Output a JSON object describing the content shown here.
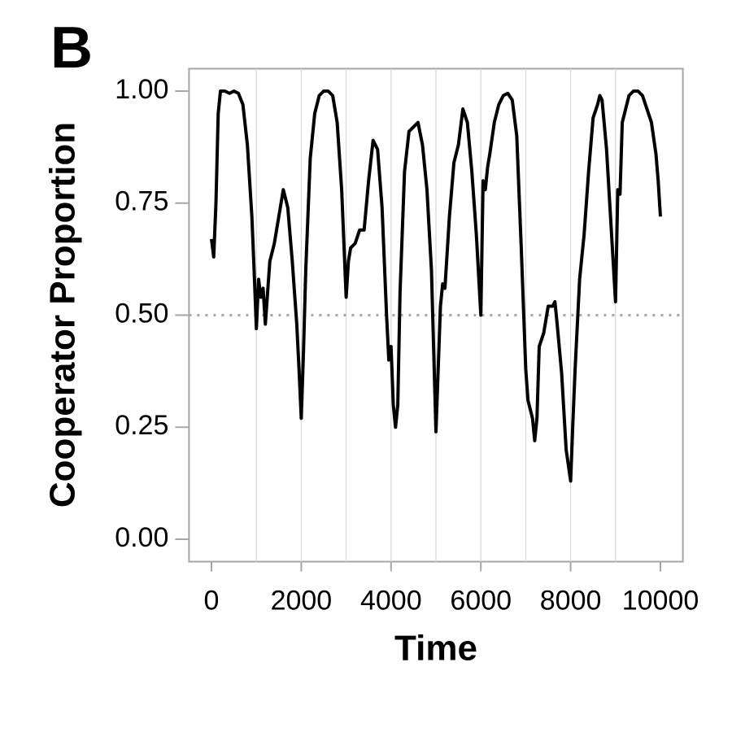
{
  "chart_data": {
    "type": "line",
    "panel_label": "B",
    "x_label": "Time",
    "y_label": "Cooperator Proportion",
    "xlim": [
      -500,
      10500
    ],
    "ylim": [
      -0.05,
      1.05
    ],
    "xticks": [
      0,
      2000,
      4000,
      6000,
      8000,
      10000
    ],
    "yticks": [
      {
        "value": 0,
        "label": "0.00"
      },
      0.25,
      {
        "value": 0.5,
        "label": "0.50"
      },
      0.75,
      {
        "value": 1,
        "label": "1.00"
      }
    ],
    "vlines": [
      1000,
      2000,
      3000,
      4000,
      5000,
      6000,
      7000,
      8000,
      9000
    ],
    "hline": 0.5,
    "x": [
      0,
      50,
      100,
      150,
      200,
      300,
      400,
      500,
      600,
      700,
      800,
      900,
      950,
      1000,
      1050,
      1100,
      1150,
      1200,
      1250,
      1300,
      1400,
      1500,
      1600,
      1700,
      1800,
      1900,
      1950,
      2000,
      2050,
      2100,
      2200,
      2300,
      2400,
      2500,
      2600,
      2700,
      2800,
      2900,
      3000,
      3050,
      3100,
      3200,
      3300,
      3400,
      3500,
      3600,
      3700,
      3800,
      3900,
      3950,
      4000,
      4050,
      4100,
      4150,
      4200,
      4300,
      4400,
      4500,
      4600,
      4700,
      4800,
      4900,
      5000,
      5050,
      5100,
      5150,
      5200,
      5300,
      5400,
      5500,
      5600,
      5700,
      5800,
      5900,
      6000,
      6050,
      6100,
      6150,
      6200,
      6300,
      6400,
      6500,
      6600,
      6700,
      6800,
      6900,
      7000,
      7050,
      7100,
      7150,
      7200,
      7250,
      7300,
      7400,
      7500,
      7600,
      7650,
      7700,
      7800,
      7900,
      8000,
      8050,
      8100,
      8200,
      8300,
      8400,
      8500,
      8600,
      8650,
      8700,
      8800,
      8900,
      9000,
      9050,
      9100,
      9150,
      9200,
      9300,
      9400,
      9500,
      9600,
      9700,
      9800,
      9900,
      9950,
      10000
    ],
    "series": [
      {
        "color": "#000000",
        "values": [
          0.67,
          0.63,
          0.75,
          0.95,
          1.0,
          1.0,
          0.995,
          1.0,
          0.995,
          0.97,
          0.88,
          0.72,
          0.6,
          0.47,
          0.58,
          0.54,
          0.56,
          0.48,
          0.55,
          0.62,
          0.66,
          0.72,
          0.78,
          0.74,
          0.62,
          0.48,
          0.38,
          0.27,
          0.42,
          0.6,
          0.85,
          0.95,
          0.99,
          1.0,
          1.0,
          0.99,
          0.93,
          0.78,
          0.54,
          0.62,
          0.65,
          0.66,
          0.69,
          0.69,
          0.8,
          0.89,
          0.87,
          0.74,
          0.5,
          0.4,
          0.43,
          0.3,
          0.25,
          0.3,
          0.55,
          0.82,
          0.91,
          0.92,
          0.93,
          0.88,
          0.78,
          0.6,
          0.24,
          0.38,
          0.52,
          0.57,
          0.56,
          0.72,
          0.84,
          0.88,
          0.96,
          0.93,
          0.82,
          0.68,
          0.5,
          0.8,
          0.78,
          0.83,
          0.86,
          0.93,
          0.97,
          0.99,
          0.995,
          0.98,
          0.9,
          0.65,
          0.38,
          0.31,
          0.29,
          0.27,
          0.22,
          0.27,
          0.43,
          0.46,
          0.52,
          0.52,
          0.53,
          0.48,
          0.37,
          0.2,
          0.13,
          0.26,
          0.38,
          0.58,
          0.68,
          0.82,
          0.94,
          0.97,
          0.99,
          0.98,
          0.87,
          0.7,
          0.53,
          0.78,
          0.77,
          0.93,
          0.95,
          0.99,
          1.0,
          1.0,
          0.99,
          0.96,
          0.93,
          0.86,
          0.8,
          0.72
        ]
      }
    ]
  }
}
